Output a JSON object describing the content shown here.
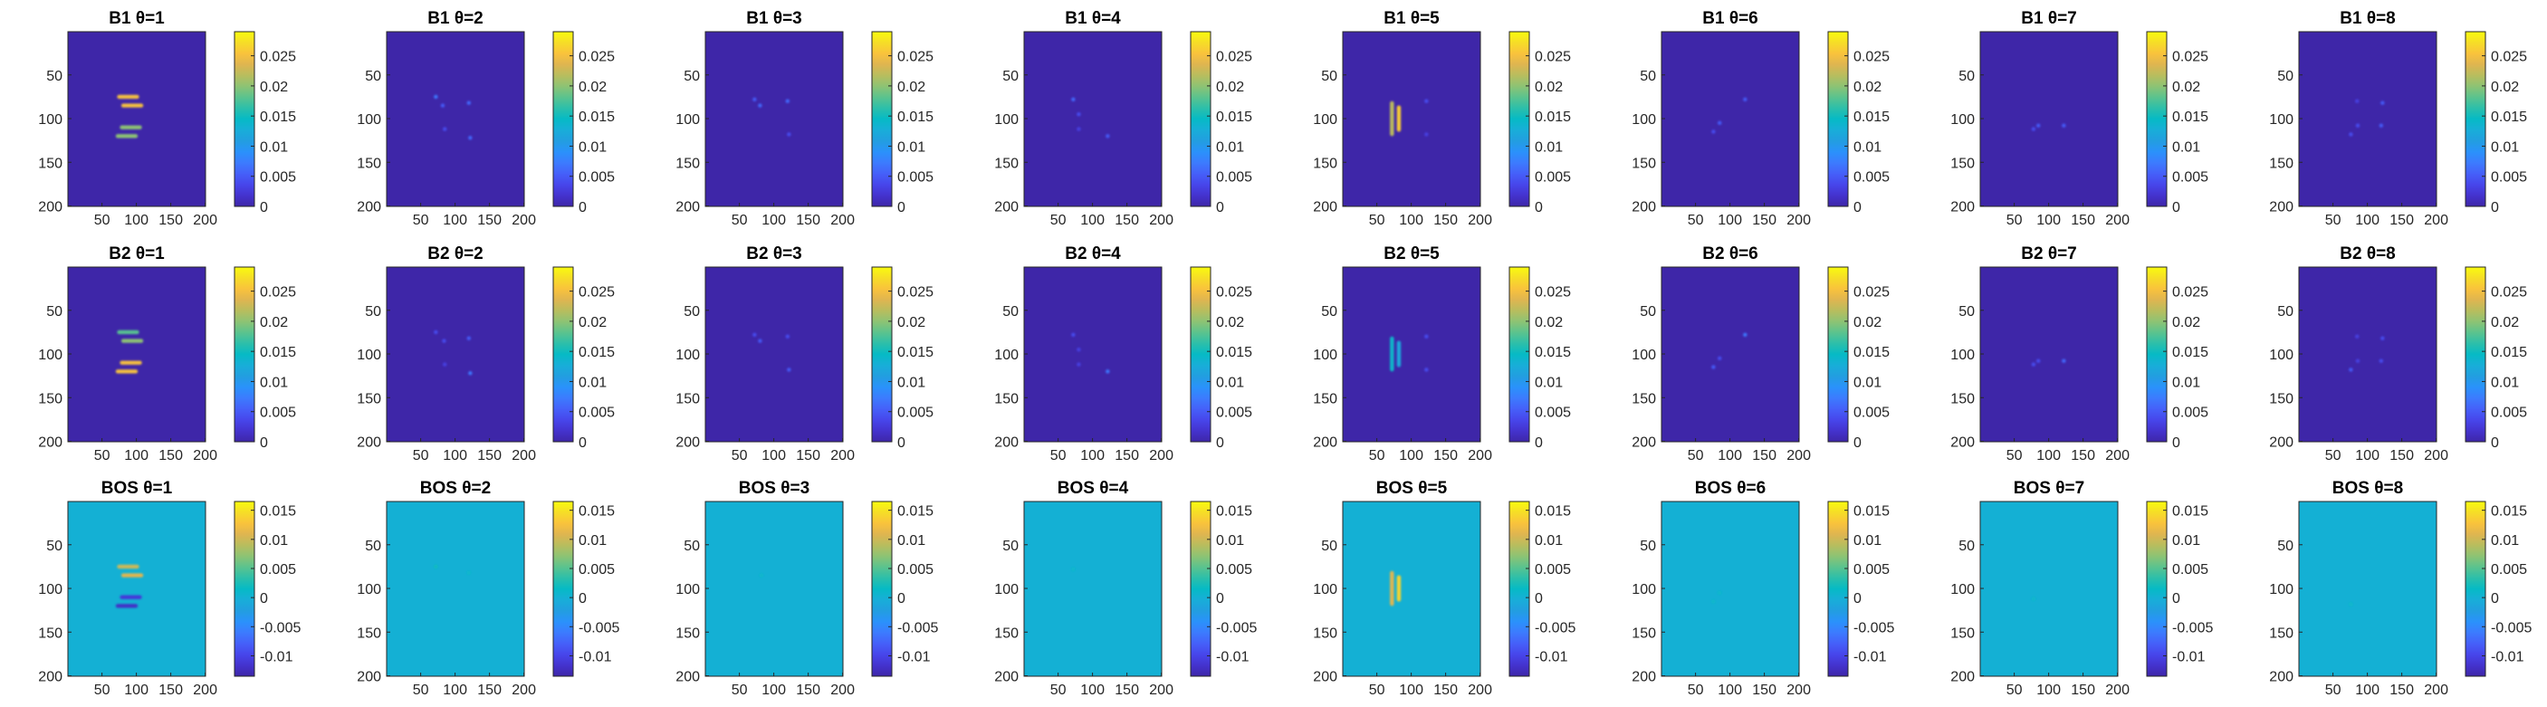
{
  "colors": {
    "parula": [
      "#3e26a8",
      "#4433ce",
      "#4746eb",
      "#4560f9",
      "#3c7bfe",
      "#2a92fb",
      "#229ee0",
      "#18aed8",
      "#06bac5",
      "#2cbfaa",
      "#5bc38e",
      "#8dc374",
      "#b8bd5e",
      "#dfb550",
      "#f9c33c",
      "#f6dd27",
      "#f9fb0e"
    ],
    "axis": "#262626"
  },
  "rows": [
    {
      "prefix": "B1",
      "titles": [
        "B1 θ=1",
        "B1 θ=2",
        "B1 θ=3",
        "B1 θ=4",
        "B1 θ=5",
        "B1 θ=6",
        "B1 θ=7",
        "B1 θ=8"
      ]
    },
    {
      "prefix": "B2",
      "titles": [
        "B2 θ=1",
        "B2 θ=2",
        "B2 θ=3",
        "B2 θ=4",
        "B2 θ=5",
        "B2 θ=6",
        "B2 θ=7",
        "B2 θ=8"
      ]
    },
    {
      "prefix": "BOS",
      "titles": [
        "BOS θ=1",
        "BOS θ=2",
        "BOS θ=3",
        "BOS θ=4",
        "BOS θ=5",
        "BOS θ=6",
        "BOS θ=7",
        "BOS θ=8"
      ]
    }
  ],
  "chart_data": {
    "type": "heatmap",
    "layout": "3 rows x 8 columns of image panels, each with a colorbar on the right",
    "x_ticks": [
      "50",
      "100",
      "150",
      "200"
    ],
    "y_ticks": [
      "50",
      "100",
      "150",
      "200"
    ],
    "xlim": [
      0.5,
      200.5
    ],
    "ylim": [
      0.5,
      200.5
    ],
    "y_direction": "reverse",
    "colormap": "parula",
    "colorbars": {
      "B1": {
        "clim": [
          0,
          0.029
        ],
        "ticks": [
          0,
          0.005,
          0.01,
          0.015,
          0.02,
          0.025
        ],
        "tick_labels": [
          "0",
          "0.005",
          "0.01",
          "0.015",
          "0.02",
          "0.025"
        ]
      },
      "B2": {
        "clim": [
          0,
          0.029
        ],
        "ticks": [
          0,
          0.005,
          0.01,
          0.015,
          0.02,
          0.025
        ],
        "tick_labels": [
          "0",
          "0.005",
          "0.01",
          "0.015",
          "0.02",
          "0.025"
        ]
      },
      "BOS": {
        "clim": [
          -0.0135,
          0.0165
        ],
        "ticks": [
          -0.01,
          -0.005,
          0,
          0.005,
          0.01,
          0.015
        ],
        "tick_labels": [
          "-0.01",
          "-0.005",
          "0",
          "0.005",
          "0.01",
          "0.015"
        ]
      }
    },
    "background_values": {
      "B1": 0,
      "B2": 0,
      "BOS": 0
    },
    "features": {
      "B1": [
        [
          {
            "kind": "hbar",
            "x0": 72,
            "x1": 104,
            "y": 75,
            "v": 0.025
          },
          {
            "kind": "hbar",
            "x0": 78,
            "x1": 110,
            "y": 85,
            "v": 0.025
          },
          {
            "kind": "hbar",
            "x0": 76,
            "x1": 108,
            "y": 110,
            "v": 0.02
          },
          {
            "kind": "hbar",
            "x0": 70,
            "x1": 102,
            "y": 120,
            "v": 0.02
          }
        ],
        [
          {
            "kind": "dot",
            "x": 72,
            "y": 75,
            "v": 0.007
          },
          {
            "kind": "dot",
            "x": 82,
            "y": 85,
            "v": 0.005
          },
          {
            "kind": "dot",
            "x": 120,
            "y": 82,
            "v": 0.006
          },
          {
            "kind": "dot",
            "x": 85,
            "y": 112,
            "v": 0.004
          },
          {
            "kind": "dot",
            "x": 122,
            "y": 122,
            "v": 0.006
          }
        ],
        [
          {
            "kind": "dot",
            "x": 72,
            "y": 78,
            "v": 0.005
          },
          {
            "kind": "dot",
            "x": 80,
            "y": 85,
            "v": 0.006
          },
          {
            "kind": "dot",
            "x": 120,
            "y": 80,
            "v": 0.006
          },
          {
            "kind": "dot",
            "x": 122,
            "y": 118,
            "v": 0.004
          }
        ],
        [
          {
            "kind": "dot",
            "x": 72,
            "y": 78,
            "v": 0.006
          },
          {
            "kind": "dot",
            "x": 80,
            "y": 95,
            "v": 0.004
          },
          {
            "kind": "dot",
            "x": 80,
            "y": 112,
            "v": 0.003
          },
          {
            "kind": "dot",
            "x": 122,
            "y": 120,
            "v": 0.005
          }
        ],
        [
          {
            "kind": "vbar",
            "x": 72,
            "y0": 80,
            "y1": 120,
            "v": 0.022
          },
          {
            "kind": "vbar",
            "x": 82,
            "y0": 85,
            "y1": 115,
            "v": 0.026
          },
          {
            "kind": "dot",
            "x": 122,
            "y": 80,
            "v": 0.004
          },
          {
            "kind": "dot",
            "x": 122,
            "y": 118,
            "v": 0.003
          }
        ],
        [
          {
            "kind": "dot",
            "x": 122,
            "y": 78,
            "v": 0.005
          },
          {
            "kind": "dot",
            "x": 85,
            "y": 105,
            "v": 0.005
          },
          {
            "kind": "dot",
            "x": 76,
            "y": 115,
            "v": 0.004
          }
        ],
        [
          {
            "kind": "dot",
            "x": 85,
            "y": 108,
            "v": 0.005
          },
          {
            "kind": "dot",
            "x": 78,
            "y": 112,
            "v": 0.004
          },
          {
            "kind": "dot",
            "x": 122,
            "y": 108,
            "v": 0.005
          }
        ],
        [
          {
            "kind": "dot",
            "x": 85,
            "y": 80,
            "v": 0.003
          },
          {
            "kind": "dot",
            "x": 122,
            "y": 82,
            "v": 0.005
          },
          {
            "kind": "dot",
            "x": 86,
            "y": 108,
            "v": 0.004
          },
          {
            "kind": "dot",
            "x": 120,
            "y": 108,
            "v": 0.005
          },
          {
            "kind": "dot",
            "x": 76,
            "y": 118,
            "v": 0.004
          }
        ]
      ],
      "B2": [
        [
          {
            "kind": "hbar",
            "x0": 72,
            "x1": 104,
            "y": 75,
            "v": 0.018
          },
          {
            "kind": "hbar",
            "x0": 78,
            "x1": 110,
            "y": 85,
            "v": 0.02
          },
          {
            "kind": "hbar",
            "x0": 76,
            "x1": 108,
            "y": 110,
            "v": 0.025
          },
          {
            "kind": "hbar",
            "x0": 70,
            "x1": 102,
            "y": 120,
            "v": 0.025
          }
        ],
        [
          {
            "kind": "dot",
            "x": 72,
            "y": 75,
            "v": 0.004
          },
          {
            "kind": "dot",
            "x": 84,
            "y": 85,
            "v": 0.004
          },
          {
            "kind": "dot",
            "x": 120,
            "y": 82,
            "v": 0.005
          },
          {
            "kind": "dot",
            "x": 85,
            "y": 112,
            "v": 0.003
          },
          {
            "kind": "dot",
            "x": 122,
            "y": 122,
            "v": 0.007
          }
        ],
        [
          {
            "kind": "dot",
            "x": 72,
            "y": 78,
            "v": 0.004
          },
          {
            "kind": "dot",
            "x": 80,
            "y": 85,
            "v": 0.005
          },
          {
            "kind": "dot",
            "x": 120,
            "y": 80,
            "v": 0.004
          },
          {
            "kind": "dot",
            "x": 122,
            "y": 118,
            "v": 0.005
          }
        ],
        [
          {
            "kind": "dot",
            "x": 72,
            "y": 78,
            "v": 0.004
          },
          {
            "kind": "dot",
            "x": 80,
            "y": 95,
            "v": 0.003
          },
          {
            "kind": "dot",
            "x": 80,
            "y": 112,
            "v": 0.003
          },
          {
            "kind": "dot",
            "x": 122,
            "y": 120,
            "v": 0.007
          }
        ],
        [
          {
            "kind": "vbar",
            "x": 72,
            "y0": 80,
            "y1": 120,
            "v": 0.014
          },
          {
            "kind": "vbar",
            "x": 82,
            "y0": 85,
            "y1": 115,
            "v": 0.012
          },
          {
            "kind": "dot",
            "x": 122,
            "y": 80,
            "v": 0.004
          },
          {
            "kind": "dot",
            "x": 122,
            "y": 118,
            "v": 0.004
          }
        ],
        [
          {
            "kind": "dot",
            "x": 122,
            "y": 78,
            "v": 0.007
          },
          {
            "kind": "dot",
            "x": 85,
            "y": 105,
            "v": 0.004
          },
          {
            "kind": "dot",
            "x": 76,
            "y": 115,
            "v": 0.005
          }
        ],
        [
          {
            "kind": "dot",
            "x": 85,
            "y": 108,
            "v": 0.004
          },
          {
            "kind": "dot",
            "x": 78,
            "y": 112,
            "v": 0.004
          },
          {
            "kind": "dot",
            "x": 122,
            "y": 108,
            "v": 0.006
          }
        ],
        [
          {
            "kind": "dot",
            "x": 85,
            "y": 80,
            "v": 0.003
          },
          {
            "kind": "dot",
            "x": 122,
            "y": 82,
            "v": 0.004
          },
          {
            "kind": "dot",
            "x": 86,
            "y": 108,
            "v": 0.003
          },
          {
            "kind": "dot",
            "x": 120,
            "y": 108,
            "v": 0.004
          },
          {
            "kind": "dot",
            "x": 76,
            "y": 118,
            "v": 0.005
          }
        ]
      ],
      "BOS": [
        [
          {
            "kind": "hbar",
            "x0": 72,
            "x1": 104,
            "y": 75,
            "v": 0.01
          },
          {
            "kind": "hbar",
            "x0": 78,
            "x1": 110,
            "y": 85,
            "v": 0.011
          },
          {
            "kind": "hbar",
            "x0": 76,
            "x1": 108,
            "y": 110,
            "v": -0.011
          },
          {
            "kind": "hbar",
            "x0": 70,
            "x1": 102,
            "y": 120,
            "v": -0.012
          }
        ],
        [
          {
            "kind": "dot",
            "x": 72,
            "y": 75,
            "v": 0.002
          },
          {
            "kind": "dot",
            "x": 120,
            "y": 82,
            "v": 0.001
          }
        ],
        [
          {
            "kind": "dot",
            "x": 82,
            "y": 85,
            "v": 0.001
          }
        ],
        [
          {
            "kind": "dot",
            "x": 72,
            "y": 78,
            "v": 0.001
          }
        ],
        [
          {
            "kind": "vbar",
            "x": 72,
            "y0": 80,
            "y1": 120,
            "v": 0.011
          },
          {
            "kind": "vbar",
            "x": 82,
            "y0": 85,
            "y1": 115,
            "v": 0.014
          }
        ],
        [
          {
            "kind": "dot",
            "x": 85,
            "y": 105,
            "v": 0.001
          },
          {
            "kind": "dot",
            "x": 76,
            "y": 115,
            "v": 0.001
          }
        ],
        [
          {
            "kind": "dot",
            "x": 78,
            "y": 112,
            "v": 0.001
          }
        ],
        [
          {
            "kind": "dot",
            "x": 76,
            "y": 118,
            "v": 0.001
          }
        ]
      ]
    }
  }
}
